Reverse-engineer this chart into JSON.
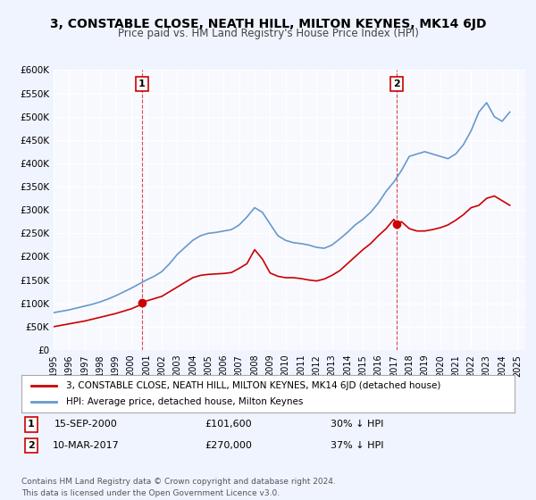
{
  "title": "3, CONSTABLE CLOSE, NEATH HILL, MILTON KEYNES, MK14 6JD",
  "subtitle": "Price paid vs. HM Land Registry's House Price Index (HPI)",
  "legend_label_red": "3, CONSTABLE CLOSE, NEATH HILL, MILTON KEYNES, MK14 6JD (detached house)",
  "legend_label_blue": "HPI: Average price, detached house, Milton Keynes",
  "annotation1_label": "1",
  "annotation1_date": "15-SEP-2000",
  "annotation1_price": "£101,600",
  "annotation1_hpi": "30% ↓ HPI",
  "annotation2_label": "2",
  "annotation2_date": "10-MAR-2017",
  "annotation2_price": "£270,000",
  "annotation2_hpi": "37% ↓ HPI",
  "footer1": "Contains HM Land Registry data © Crown copyright and database right 2024.",
  "footer2": "This data is licensed under the Open Government Licence v3.0.",
  "xmin": 1995.0,
  "xmax": 2025.5,
  "ymin": 0,
  "ymax": 600000,
  "yticks": [
    0,
    50000,
    100000,
    150000,
    200000,
    250000,
    300000,
    350000,
    400000,
    450000,
    500000,
    550000,
    600000
  ],
  "ytick_labels": [
    "£0",
    "£50K",
    "£100K",
    "£150K",
    "£200K",
    "£250K",
    "£300K",
    "£350K",
    "£400K",
    "£450K",
    "£500K",
    "£550K",
    "£600K"
  ],
  "bg_color": "#f0f4ff",
  "plot_bg": "#f8f9ff",
  "red_color": "#cc0000",
  "blue_color": "#6699cc",
  "marker1_x": 2000.71,
  "marker1_y": 101600,
  "marker2_x": 2017.19,
  "marker2_y": 270000,
  "vline1_x": 2000.71,
  "vline2_x": 2017.19,
  "hpi_x": [
    1995,
    1995.5,
    1996,
    1996.5,
    1997,
    1997.5,
    1998,
    1998.5,
    1999,
    1999.5,
    2000,
    2000.5,
    2001,
    2001.5,
    2002,
    2002.5,
    2003,
    2003.5,
    2004,
    2004.5,
    2005,
    2005.5,
    2006,
    2006.5,
    2007,
    2007.5,
    2008,
    2008.5,
    2009,
    2009.5,
    2010,
    2010.5,
    2011,
    2011.5,
    2012,
    2012.5,
    2013,
    2013.5,
    2014,
    2014.5,
    2015,
    2015.5,
    2016,
    2016.5,
    2017,
    2017.5,
    2018,
    2018.5,
    2019,
    2019.5,
    2020,
    2020.5,
    2021,
    2021.5,
    2022,
    2022.5,
    2023,
    2023.5,
    2024,
    2024.5
  ],
  "hpi_y": [
    80000,
    83000,
    86000,
    90000,
    94000,
    98000,
    103000,
    109000,
    116000,
    124000,
    132000,
    141000,
    150000,
    158000,
    168000,
    185000,
    205000,
    220000,
    235000,
    245000,
    250000,
    252000,
    255000,
    258000,
    268000,
    285000,
    305000,
    295000,
    270000,
    245000,
    235000,
    230000,
    228000,
    225000,
    220000,
    218000,
    225000,
    238000,
    252000,
    268000,
    280000,
    295000,
    315000,
    340000,
    360000,
    385000,
    415000,
    420000,
    425000,
    420000,
    415000,
    410000,
    420000,
    440000,
    470000,
    510000,
    530000,
    500000,
    490000,
    510000
  ],
  "red_x": [
    1995,
    1995.5,
    1996,
    1996.5,
    1997,
    1997.5,
    1998,
    1998.5,
    1999,
    1999.5,
    2000,
    2000.5,
    2000.71,
    2001,
    2001.5,
    2002,
    2002.5,
    2003,
    2003.5,
    2004,
    2004.5,
    2005,
    2005.5,
    2006,
    2006.5,
    2007,
    2007.5,
    2008,
    2008.5,
    2009,
    2009.5,
    2010,
    2010.5,
    2011,
    2011.5,
    2012,
    2012.5,
    2013,
    2013.5,
    2014,
    2014.5,
    2015,
    2015.5,
    2016,
    2016.5,
    2017,
    2017.19,
    2017.5,
    2018,
    2018.5,
    2019,
    2019.5,
    2020,
    2020.5,
    2021,
    2021.5,
    2022,
    2022.5,
    2023,
    2023.5,
    2024,
    2024.5
  ],
  "red_y": [
    50000,
    53000,
    56000,
    59000,
    62000,
    66000,
    70000,
    74000,
    78000,
    83000,
    88000,
    95000,
    101600,
    105000,
    110000,
    115000,
    125000,
    135000,
    145000,
    155000,
    160000,
    162000,
    163000,
    164000,
    166000,
    175000,
    185000,
    215000,
    195000,
    165000,
    158000,
    155000,
    155000,
    153000,
    150000,
    148000,
    152000,
    160000,
    170000,
    185000,
    200000,
    215000,
    228000,
    245000,
    260000,
    280000,
    270000,
    275000,
    260000,
    255000,
    255000,
    258000,
    262000,
    268000,
    278000,
    290000,
    305000,
    310000,
    325000,
    330000,
    320000,
    310000
  ]
}
